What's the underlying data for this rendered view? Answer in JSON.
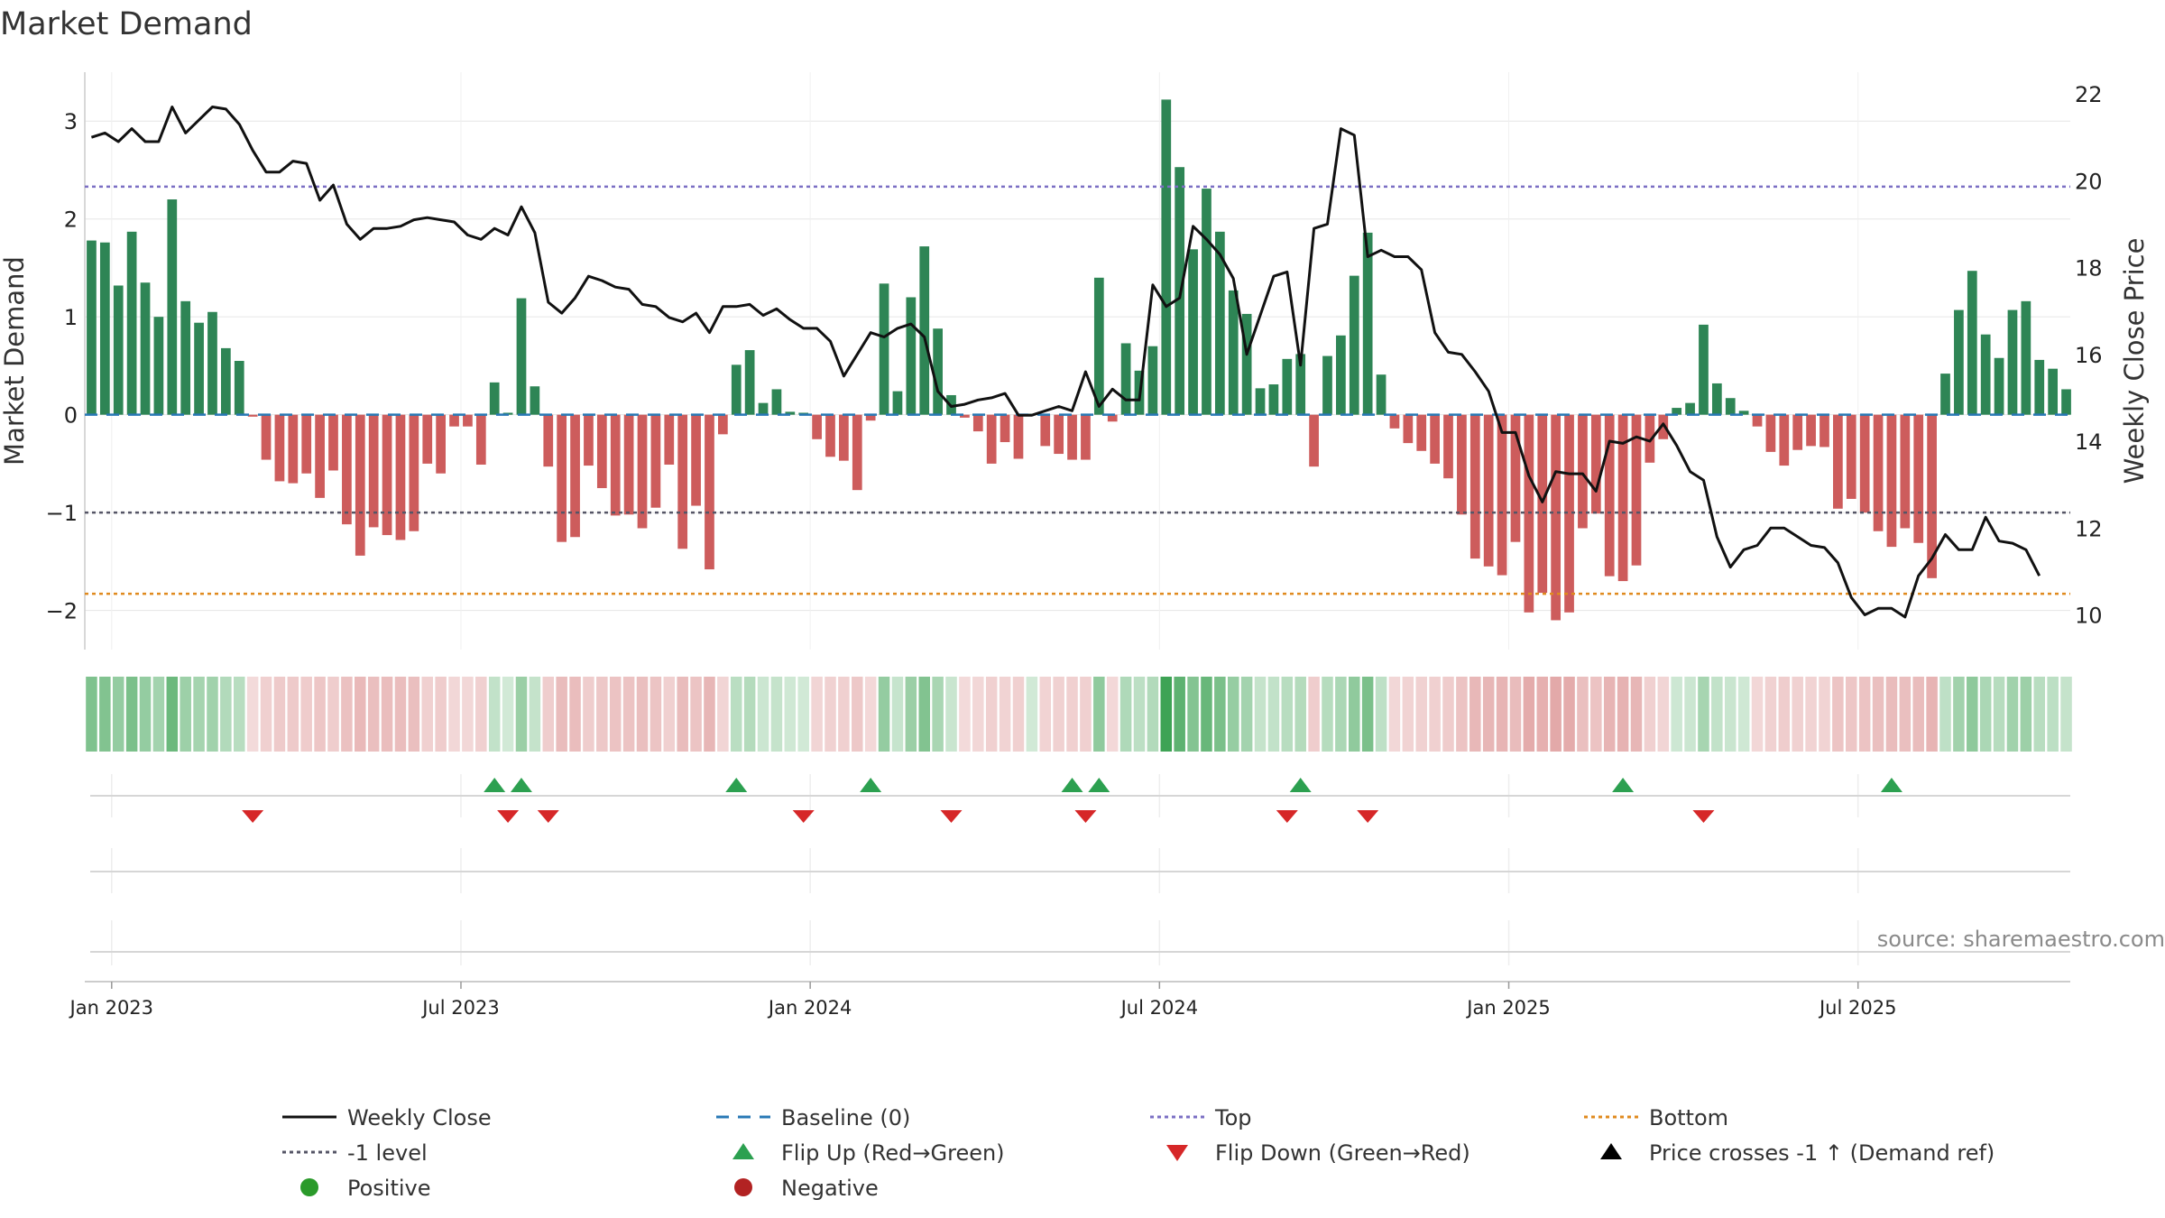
{
  "chart_data": {
    "type": "bar",
    "title": "Market Demand",
    "ylabel_left": "Market Demand",
    "ylabel_right": "Weekly Close Price",
    "source": "source: sharemaestro.com",
    "ylim_left": [
      -2.4,
      3.5
    ],
    "ylim_right": [
      9.2,
      22.5
    ],
    "y_ticks_left": [
      {
        "v": 3,
        "label": "3"
      },
      {
        "v": 2,
        "label": "2"
      },
      {
        "v": 1,
        "label": "1"
      },
      {
        "v": 0,
        "label": "0"
      },
      {
        "v": -1,
        "label": "−1"
      },
      {
        "v": -2,
        "label": "−2"
      }
    ],
    "y_ticks_right": [
      {
        "v": 22,
        "label": "22"
      },
      {
        "v": 20,
        "label": "20"
      },
      {
        "v": 18,
        "label": "18"
      },
      {
        "v": 16,
        "label": "16"
      },
      {
        "v": 14,
        "label": "14"
      },
      {
        "v": 12,
        "label": "12"
      },
      {
        "v": 10,
        "label": "10"
      }
    ],
    "x_ticks": [
      {
        "week": 2,
        "label": "Jan 2023"
      },
      {
        "week": 28,
        "label": "Jul 2023"
      },
      {
        "week": 54,
        "label": "Jan 2024"
      },
      {
        "week": 80,
        "label": "Jul 2024"
      },
      {
        "week": 106,
        "label": "Jan 2025"
      },
      {
        "week": 132,
        "label": "Jul 2025"
      }
    ],
    "reference_lines": {
      "top": 2.33,
      "minus_one": -1.0,
      "bottom": -1.83,
      "baseline": 0
    },
    "demand": [
      1.78,
      1.76,
      1.32,
      1.87,
      1.35,
      1.0,
      2.2,
      1.16,
      0.94,
      1.05,
      0.68,
      0.55,
      -0.02,
      -0.46,
      -0.68,
      -0.7,
      -0.6,
      -0.85,
      -0.57,
      -1.12,
      -1.44,
      -1.15,
      -1.23,
      -1.28,
      -1.19,
      -0.5,
      -0.6,
      -0.12,
      -0.12,
      -0.51,
      0.33,
      0.02,
      1.19,
      0.29,
      -0.53,
      -1.3,
      -1.25,
      -0.52,
      -0.75,
      -1.03,
      -1.02,
      -1.16,
      -0.95,
      -0.51,
      -1.37,
      -0.93,
      -1.58,
      -0.2,
      0.51,
      0.66,
      0.12,
      0.26,
      0.03,
      0.02,
      -0.25,
      -0.43,
      -0.47,
      -0.77,
      -0.06,
      1.34,
      0.24,
      1.2,
      1.72,
      0.88,
      0.2,
      -0.03,
      -0.17,
      -0.5,
      -0.28,
      -0.45,
      0.01,
      -0.32,
      -0.4,
      -0.46,
      -0.46,
      1.4,
      -0.07,
      0.73,
      0.45,
      0.7,
      3.22,
      2.53,
      1.69,
      2.31,
      1.87,
      1.27,
      1.03,
      0.27,
      0.31,
      0.57,
      0.62,
      -0.53,
      0.6,
      0.81,
      1.42,
      1.86,
      0.41,
      -0.14,
      -0.29,
      -0.37,
      -0.5,
      -0.65,
      -1.02,
      -1.47,
      -1.55,
      -1.64,
      -1.3,
      -2.02,
      -1.82,
      -2.1,
      -2.02,
      -1.16,
      -1.01,
      -1.65,
      -1.7,
      -1.54,
      -0.49,
      -0.25,
      0.07,
      0.12,
      0.92,
      0.32,
      0.17,
      0.04,
      -0.12,
      -0.38,
      -0.52,
      -0.36,
      -0.32,
      -0.33,
      -0.96,
      -0.86,
      -1.0,
      -1.19,
      -1.35,
      -1.16,
      -1.31,
      -1.67,
      0.42,
      1.07,
      1.47,
      0.82,
      0.58,
      1.07,
      1.16,
      0.56,
      0.47,
      0.26
    ],
    "weekly_close": [
      21.0,
      21.1,
      20.9,
      21.2,
      20.9,
      20.9,
      21.7,
      21.1,
      21.4,
      21.7,
      21.65,
      21.3,
      20.7,
      20.2,
      20.2,
      20.45,
      20.4,
      19.55,
      19.9,
      19.0,
      18.65,
      18.9,
      18.9,
      18.95,
      19.1,
      19.15,
      19.1,
      19.05,
      18.75,
      18.65,
      18.9,
      18.75,
      19.4,
      18.8,
      17.2,
      16.95,
      17.3,
      17.8,
      17.7,
      17.55,
      17.5,
      17.15,
      17.1,
      16.85,
      16.75,
      16.95,
      16.5,
      17.1,
      17.1,
      17.15,
      16.9,
      17.05,
      16.8,
      16.6,
      16.6,
      16.3,
      15.5,
      16.0,
      16.5,
      16.4,
      16.6,
      16.7,
      16.4,
      15.15,
      14.8,
      14.85,
      14.95,
      15.0,
      15.1,
      14.6,
      14.6,
      14.7,
      14.8,
      14.7,
      15.6,
      14.8,
      15.2,
      14.95,
      14.95,
      17.6,
      17.1,
      17.3,
      18.95,
      18.65,
      18.3,
      17.75,
      16.0,
      16.9,
      17.8,
      17.9,
      15.75,
      18.9,
      19.0,
      21.2,
      21.05,
      18.25,
      18.4,
      18.25,
      18.25,
      17.95,
      16.5,
      16.05,
      16.0,
      15.6,
      15.15,
      14.2,
      14.2,
      13.2,
      12.6,
      13.3,
      13.25,
      13.25,
      12.85,
      14.0,
      13.95,
      14.1,
      14.0,
      14.4,
      13.9,
      13.3,
      13.1,
      11.8,
      11.1,
      11.5,
      11.6,
      12.0,
      12.0,
      11.8,
      11.6,
      11.55,
      11.2,
      10.4,
      10.0,
      10.15,
      10.15,
      9.95,
      10.9,
      11.3,
      11.85,
      11.5,
      11.5,
      12.25,
      11.7,
      11.65,
      11.5,
      10.9
    ],
    "status_strip": "per-week regime shading: green when demand > 0, red when demand < 0; intensity scales with |demand|",
    "flip_up_weeks": [
      30,
      32,
      48,
      58,
      73,
      75,
      90,
      114,
      134
    ],
    "flip_down_weeks": [
      12,
      31,
      34,
      53,
      64,
      74,
      89,
      95,
      120
    ],
    "legend": [
      {
        "label": "Weekly Close",
        "color": "#111111",
        "style": "solid-line"
      },
      {
        "label": "Baseline (0)",
        "color": "#2878b5",
        "style": "dashed-line"
      },
      {
        "label": "Top",
        "color": "#7b6fc4",
        "style": "dotted-line"
      },
      {
        "label": "Bottom",
        "color": "#e08a1e",
        "style": "dotted-line"
      },
      {
        "label": "-1 level",
        "color": "#555566",
        "style": "dotted-line"
      },
      {
        "label": "Flip Up (Red→Green)",
        "color": "#2ca050",
        "style": "triangle-up"
      },
      {
        "label": "Flip Down (Green→Red)",
        "color": "#d62728",
        "style": "triangle-down"
      },
      {
        "label": "Price crosses -1 ↑ (Demand ref)",
        "color": "#000000",
        "style": "triangle-up"
      },
      {
        "label": "Positive",
        "color": "#2a9a2a",
        "style": "dot"
      },
      {
        "label": "Negative",
        "color": "#b22222",
        "style": "dot"
      }
    ],
    "colors": {
      "positive_bar": "#2e8555",
      "negative_bar": "#cd5c5c",
      "grid": "#e6e6e6",
      "axis": "#cccccc"
    }
  }
}
